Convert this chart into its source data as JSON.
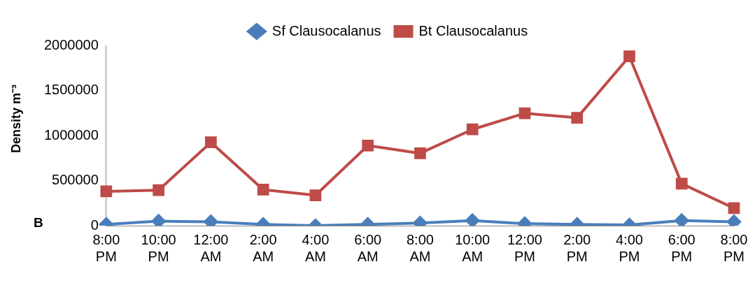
{
  "chart_data": {
    "type": "line",
    "ylabel": "Density m⁻³",
    "annotations": [
      "B"
    ],
    "categories": [
      "8:00 PM",
      "10:00 PM",
      "12:00 AM",
      "2:00 AM",
      "4:00 AM",
      "6:00 AM",
      "8:00 AM",
      "10:00 AM",
      "12:00 PM",
      "2:00 PM",
      "4:00 PM",
      "6:00 PM",
      "8:00 PM"
    ],
    "series": [
      {
        "name": "Sf Clausocalanus",
        "color": "#4a7ebb",
        "marker": "diamond",
        "values": [
          14000,
          50000,
          43000,
          14000,
          0,
          14000,
          29000,
          57000,
          22000,
          14000,
          7000,
          57000,
          43000
        ]
      },
      {
        "name": "Bt Clausocalanus",
        "color": "#be4b48",
        "marker": "square",
        "values": [
          380000,
          394000,
          925000,
          400000,
          337000,
          889000,
          803000,
          1068000,
          1247000,
          1197000,
          1878000,
          466000,
          194000
        ]
      }
    ],
    "ylim": [
      0,
      2000000
    ],
    "yticks": [
      0,
      500000,
      1000000,
      1500000,
      2000000
    ],
    "grid": false,
    "legend": "top",
    "line_style": "solid"
  }
}
